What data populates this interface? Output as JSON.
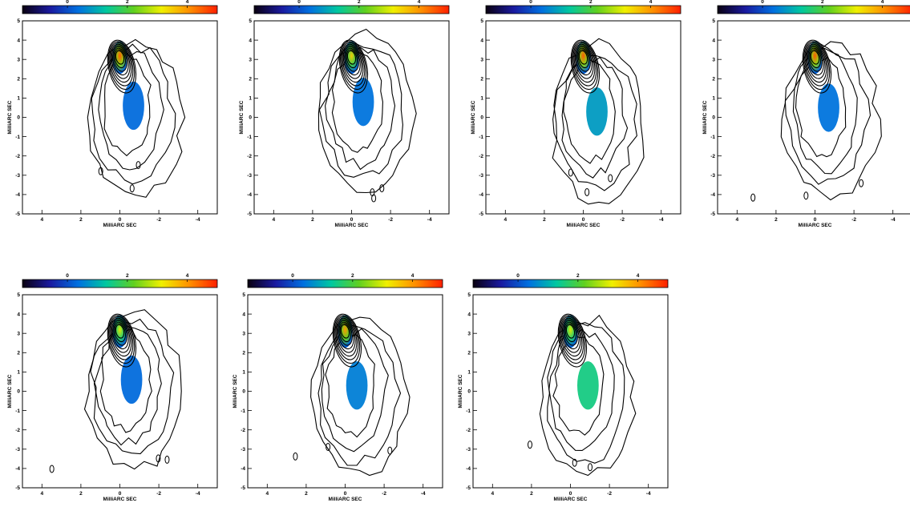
{
  "colorbar_ticks": [
    "0",
    "2",
    "4"
  ],
  "colors": {
    "cbar_stops": [
      "#0a0010",
      "#1a1aa0",
      "#0070e0",
      "#00c8a0",
      "#60d020",
      "#f0f000",
      "#ff9000",
      "#ff2000"
    ],
    "contour": "#000000"
  },
  "chart_data": [
    {
      "panel": 1,
      "type": "contour+colormap",
      "xlabel": "MilliARC SEC",
      "ylabel": "MilliARC SEC",
      "xticks": [
        "4",
        "2",
        "0",
        "-2",
        "-4"
      ],
      "yticks": [
        "5",
        "4",
        "3",
        "2",
        "1",
        "0",
        "-1",
        "-2",
        "-3",
        "-4",
        "-5"
      ],
      "xlim": [
        5,
        -5
      ],
      "ylim": [
        -5,
        5
      ],
      "colorbar": {
        "ticks": [
          0,
          2,
          4
        ],
        "range": [
          -1.5,
          5
        ]
      },
      "core": {
        "x": 0,
        "y": 3.1,
        "value": 4.5
      },
      "jet_blobs": [
        {
          "x": -0.7,
          "y": 0.6,
          "value": 0.3
        }
      ]
    },
    {
      "panel": 2,
      "type": "contour+colormap",
      "xlabel": "MilliARC SEC",
      "ylabel": "MilliARC SEC",
      "xticks": [
        "4",
        "2",
        "0",
        "-2",
        "-4"
      ],
      "yticks": [
        "5",
        "4",
        "3",
        "2",
        "1",
        "0",
        "-1",
        "-2",
        "-3",
        "-4",
        "-5"
      ],
      "xlim": [
        5,
        -5
      ],
      "ylim": [
        -5,
        5
      ],
      "colorbar": {
        "ticks": [
          0,
          2,
          4
        ],
        "range": [
          -1.5,
          5
        ]
      },
      "core": {
        "x": 0,
        "y": 3.1,
        "value": 3.5
      },
      "jet_blobs": [
        {
          "x": -0.6,
          "y": 0.8,
          "value": 0.4
        }
      ]
    },
    {
      "panel": 3,
      "type": "contour+colormap",
      "xlabel": "MilliARC SEC",
      "ylabel": "MilliARC SEC",
      "xticks": [
        "4",
        "2",
        "0",
        "-2",
        "-4"
      ],
      "yticks": [
        "5",
        "4",
        "3",
        "2",
        "1",
        "0",
        "-1",
        "-2",
        "-3",
        "-4",
        "-5"
      ],
      "xlim": [
        5,
        -5
      ],
      "ylim": [
        -5,
        5
      ],
      "colorbar": {
        "ticks": [
          0,
          2,
          4
        ],
        "range": [
          -1.5,
          5
        ]
      },
      "core": {
        "x": 0,
        "y": 3.1,
        "value": 4.5
      },
      "jet_blobs": [
        {
          "x": -0.7,
          "y": 0.3,
          "value": 0.8
        }
      ]
    },
    {
      "panel": 4,
      "type": "contour+colormap",
      "xlabel": "MilliARC SEC",
      "ylabel": "MilliARC SEC",
      "xticks": [
        "4",
        "2",
        "0",
        "-2",
        "-4"
      ],
      "yticks": [
        "5",
        "4",
        "3",
        "2",
        "1",
        "0",
        "-1",
        "-2",
        "-3",
        "-4",
        "-5"
      ],
      "xlim": [
        5,
        -5
      ],
      "ylim": [
        -5,
        5
      ],
      "colorbar": {
        "ticks": [
          0,
          2,
          4
        ],
        "range": [
          -1.5,
          5
        ]
      },
      "core": {
        "x": 0,
        "y": 3.1,
        "value": 4.5
      },
      "jet_blobs": [
        {
          "x": -0.7,
          "y": 0.5,
          "value": 0.4
        }
      ]
    },
    {
      "panel": 5,
      "type": "contour+colormap",
      "xlabel": "MilliARC SEC",
      "ylabel": "MilliARC SEC",
      "xticks": [
        "4",
        "2",
        "0",
        "-2",
        "-4"
      ],
      "yticks": [
        "5",
        "4",
        "3",
        "2",
        "1",
        "0",
        "-1",
        "-2",
        "-3",
        "-4",
        "-5"
      ],
      "xlim": [
        5,
        -5
      ],
      "ylim": [
        -5,
        5
      ],
      "colorbar": {
        "ticks": [
          0,
          2,
          4
        ],
        "range": [
          -1.5,
          5
        ]
      },
      "core": {
        "x": 0,
        "y": 3.1,
        "value": 3.0
      },
      "jet_blobs": [
        {
          "x": -0.6,
          "y": 0.6,
          "value": 0.3
        }
      ]
    },
    {
      "panel": 6,
      "type": "contour+colormap",
      "xlabel": "MilliARC SEC",
      "ylabel": "MilliARC SEC",
      "xticks": [
        "4",
        "2",
        "0",
        "-2",
        "-4"
      ],
      "yticks": [
        "5",
        "4",
        "3",
        "2",
        "1",
        "0",
        "-1",
        "-2",
        "-3",
        "-4",
        "-5"
      ],
      "xlim": [
        5,
        -5
      ],
      "ylim": [
        -5,
        5
      ],
      "colorbar": {
        "ticks": [
          0,
          2,
          4
        ],
        "range": [
          -1.5,
          5
        ]
      },
      "core": {
        "x": 0,
        "y": 3.1,
        "value": 4.0
      },
      "jet_blobs": [
        {
          "x": -0.6,
          "y": 0.3,
          "value": 0.5
        }
      ]
    },
    {
      "panel": 7,
      "type": "contour+colormap",
      "xlabel": "MilliARC SEC",
      "ylabel": "MilliARC SEC",
      "xticks": [
        "4",
        "2",
        "0",
        "-2",
        "-4"
      ],
      "yticks": [
        "5",
        "4",
        "3",
        "2",
        "1",
        "0",
        "-1",
        "-2",
        "-3",
        "-4",
        "-5"
      ],
      "xlim": [
        5,
        -5
      ],
      "ylim": [
        -5,
        5
      ],
      "colorbar": {
        "ticks": [
          0,
          2,
          4
        ],
        "range": [
          -1.5,
          5
        ]
      },
      "core": {
        "x": 0,
        "y": 3.1,
        "value": 3.0
      },
      "jet_blobs": [
        {
          "x": -0.9,
          "y": 0.3,
          "value": 1.5
        }
      ]
    }
  ]
}
